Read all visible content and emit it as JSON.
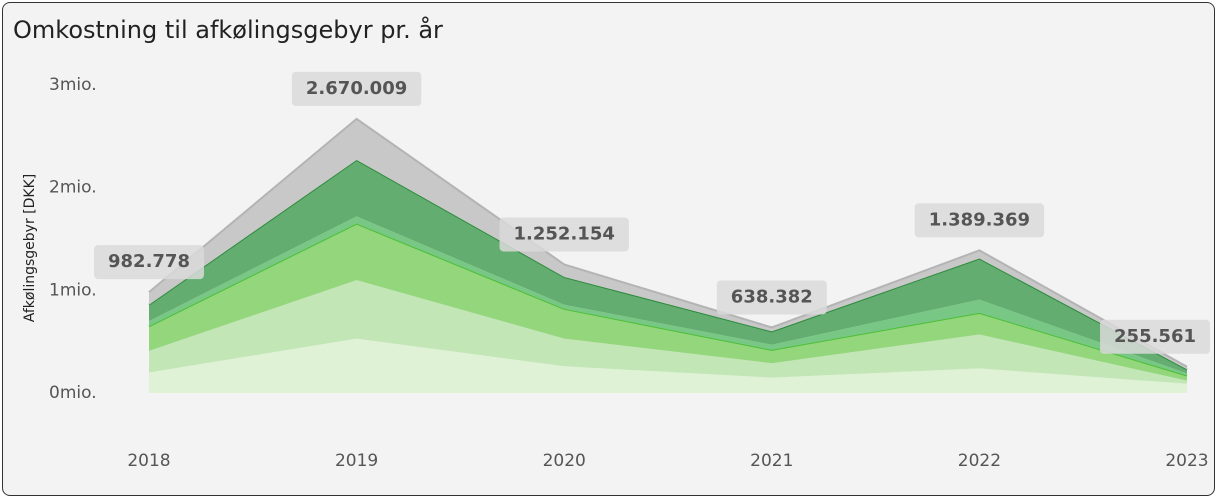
{
  "chart_data": {
    "type": "stacked_area",
    "title": "Omkostning til afkølingsgebyr pr. år",
    "y_label": "Afkølingsgebyr [DKK]",
    "categories": [
      "2018",
      "2019",
      "2020",
      "2021",
      "2022",
      "2023"
    ],
    "series": [
      {
        "color": "#dff2d6",
        "values": [
          200000,
          530000,
          260000,
          150000,
          240000,
          90000
        ]
      },
      {
        "color": "#c2e6b5",
        "values": [
          210000,
          570000,
          270000,
          140000,
          330000,
          30000
        ]
      },
      {
        "color": "#93d67c",
        "line_color": "#4cbf36",
        "values": [
          240000,
          550000,
          290000,
          130000,
          210000,
          50000
        ]
      },
      {
        "color": "#78c784",
        "values": [
          50000,
          70000,
          40000,
          50000,
          130000,
          20000
        ]
      },
      {
        "color": "#63ad70",
        "line_color": "#2e8b3e",
        "values": [
          160000,
          550000,
          270000,
          130000,
          400000,
          40000
        ]
      },
      {
        "color": "#c8c8c8",
        "line_color": "#b4b4b4",
        "values": [
          122778,
          400009,
          122154,
          38382,
          79369,
          25561
        ]
      }
    ],
    "totals": {
      "values": [
        982778,
        2670009,
        1252154,
        638382,
        1389369,
        255561
      ],
      "value_labels": [
        "982.778",
        "2.670.009",
        "1.252.154",
        "638.382",
        "1.389.369",
        "255.561"
      ]
    },
    "ylim": [
      0,
      3000000
    ],
    "yticks": [
      {
        "value": 0,
        "label": "0mio."
      },
      {
        "value": 1000000,
        "label": "1mio."
      },
      {
        "value": 2000000,
        "label": "2mio."
      },
      {
        "value": 3000000,
        "label": "3mio."
      }
    ]
  }
}
